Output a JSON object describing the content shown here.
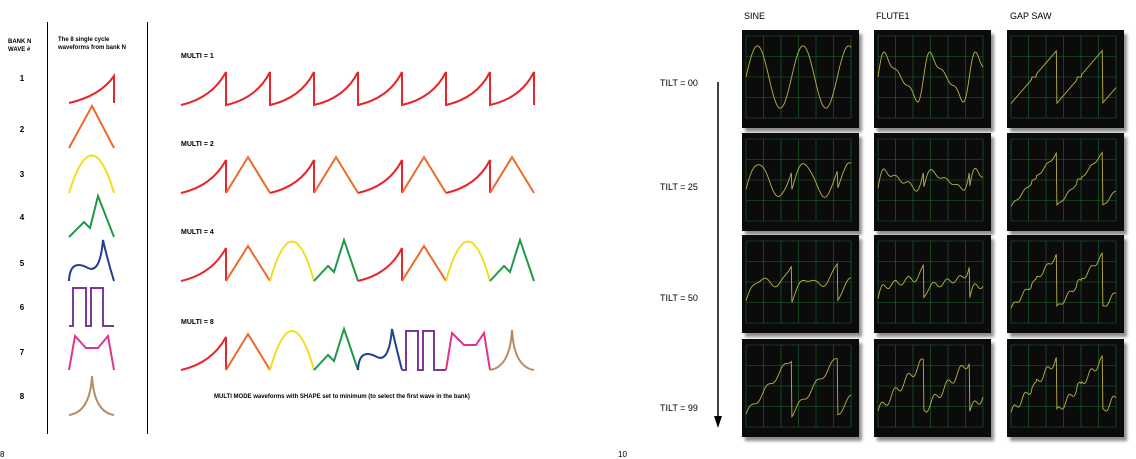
{
  "left_page": {
    "header_bank": "BANK N",
    "header_wave": "WAVE #",
    "header_desc_line1": "The 8 single cycle",
    "header_desc_line2": "waveforms from bank N",
    "wave_numbers": [
      "1",
      "2",
      "3",
      "4",
      "5",
      "6",
      "7",
      "8"
    ],
    "multi_labels": [
      "MULTI = 1",
      "MULTI = 2",
      "MULTI = 4",
      "MULTI = 8"
    ],
    "caption": "MULTI MODE waveforms with SHAPE set to minimum (to select the first wave in the bank)",
    "page_number": "8",
    "wave_colors": [
      "#e8262a",
      "#ee6a2a",
      "#f2dd1c",
      "#1e9a47",
      "#22408f",
      "#7a3a93",
      "#e0338f",
      "#b98a62"
    ]
  },
  "right_page": {
    "columns": [
      "SINE",
      "FLUTE1",
      "GAP SAW"
    ],
    "tilt_labels": [
      "TILT = 00",
      "TILT = 25",
      "TILT = 50",
      "TILT = 99"
    ],
    "page_number": "10",
    "trace_color": "#b8b34a",
    "grid_color": "#1f6a2e"
  }
}
